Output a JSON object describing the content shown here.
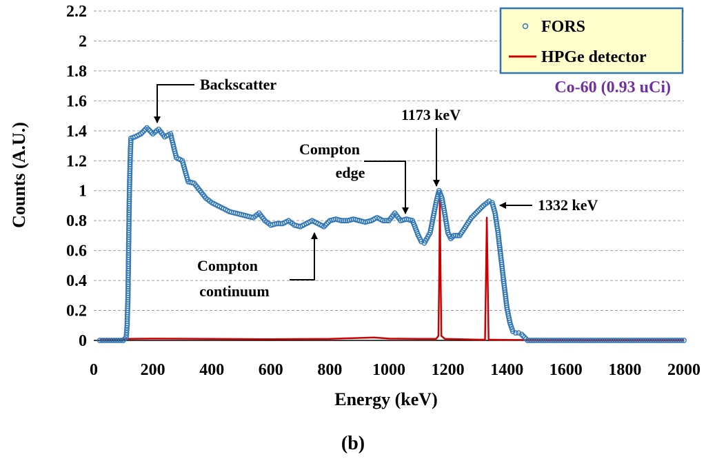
{
  "chart_data": {
    "type": "line",
    "title": "",
    "xlabel": "Energy (keV)",
    "ylabel": "Counts (A.U.)",
    "xlim": [
      0,
      2000
    ],
    "ylim": [
      0,
      2.2
    ],
    "x_ticks": [
      "0",
      "200",
      "400",
      "600",
      "800",
      "1000",
      "1200",
      "1400",
      "1600",
      "1800",
      "2000"
    ],
    "y_ticks": [
      "0",
      "0.2",
      "0.4",
      "0.6",
      "0.8",
      "1",
      "1.2",
      "1.4",
      "1.6",
      "1.8",
      "2",
      "2.2"
    ],
    "grid": "horizontal dashed",
    "legend_position": "top-right",
    "source_label": "Co-60 (0.93 uCi)",
    "panel_label": "(b)",
    "series": [
      {
        "name": "FORS",
        "style": "open circle markers",
        "color": "#2E75B6",
        "points": [
          [
            20,
            0
          ],
          [
            60,
            0
          ],
          [
            100,
            0
          ],
          [
            110,
            0.02
          ],
          [
            113,
            0.1
          ],
          [
            116,
            0.3
          ],
          [
            118,
            0.6
          ],
          [
            120,
            0.9
          ],
          [
            122,
            1.1
          ],
          [
            124,
            1.25
          ],
          [
            126,
            1.35
          ],
          [
            140,
            1.36
          ],
          [
            160,
            1.38
          ],
          [
            180,
            1.42
          ],
          [
            200,
            1.38
          ],
          [
            220,
            1.41
          ],
          [
            240,
            1.36
          ],
          [
            260,
            1.38
          ],
          [
            280,
            1.22
          ],
          [
            300,
            1.2
          ],
          [
            320,
            1.06
          ],
          [
            340,
            1.05
          ],
          [
            360,
            1.0
          ],
          [
            380,
            0.95
          ],
          [
            400,
            0.92
          ],
          [
            420,
            0.9
          ],
          [
            440,
            0.88
          ],
          [
            460,
            0.86
          ],
          [
            480,
            0.85
          ],
          [
            500,
            0.84
          ],
          [
            520,
            0.83
          ],
          [
            540,
            0.82
          ],
          [
            560,
            0.85
          ],
          [
            580,
            0.8
          ],
          [
            600,
            0.77
          ],
          [
            620,
            0.78
          ],
          [
            640,
            0.78
          ],
          [
            660,
            0.8
          ],
          [
            680,
            0.77
          ],
          [
            700,
            0.76
          ],
          [
            720,
            0.78
          ],
          [
            740,
            0.8
          ],
          [
            760,
            0.78
          ],
          [
            780,
            0.76
          ],
          [
            800,
            0.8
          ],
          [
            820,
            0.81
          ],
          [
            840,
            0.8
          ],
          [
            860,
            0.8
          ],
          [
            880,
            0.81
          ],
          [
            900,
            0.8
          ],
          [
            920,
            0.79
          ],
          [
            940,
            0.8
          ],
          [
            960,
            0.82
          ],
          [
            980,
            0.8
          ],
          [
            1000,
            0.8
          ],
          [
            1020,
            0.85
          ],
          [
            1040,
            0.8
          ],
          [
            1060,
            0.81
          ],
          [
            1080,
            0.8
          ],
          [
            1090,
            0.75
          ],
          [
            1100,
            0.7
          ],
          [
            1110,
            0.66
          ],
          [
            1120,
            0.65
          ],
          [
            1140,
            0.72
          ],
          [
            1150,
            0.82
          ],
          [
            1160,
            0.92
          ],
          [
            1170,
            1.0
          ],
          [
            1180,
            0.95
          ],
          [
            1190,
            0.84
          ],
          [
            1200,
            0.72
          ],
          [
            1210,
            0.68
          ],
          [
            1220,
            0.7
          ],
          [
            1240,
            0.7
          ],
          [
            1260,
            0.76
          ],
          [
            1280,
            0.82
          ],
          [
            1300,
            0.86
          ],
          [
            1320,
            0.9
          ],
          [
            1340,
            0.93
          ],
          [
            1350,
            0.92
          ],
          [
            1360,
            0.85
          ],
          [
            1370,
            0.72
          ],
          [
            1380,
            0.55
          ],
          [
            1390,
            0.38
          ],
          [
            1400,
            0.22
          ],
          [
            1410,
            0.12
          ],
          [
            1420,
            0.06
          ],
          [
            1430,
            0.05
          ],
          [
            1440,
            0.05
          ],
          [
            1450,
            0.04
          ],
          [
            1460,
            0.02
          ],
          [
            1470,
            0
          ],
          [
            1500,
            0
          ],
          [
            1600,
            0
          ],
          [
            1700,
            0
          ],
          [
            1800,
            0
          ],
          [
            1900,
            0
          ],
          [
            2000,
            0
          ]
        ]
      },
      {
        "name": "HPGe detector",
        "style": "line",
        "color": "#CC0000",
        "points": [
          [
            20,
            0.005
          ],
          [
            100,
            0.01
          ],
          [
            110,
            0.01
          ],
          [
            200,
            0.012
          ],
          [
            400,
            0.01
          ],
          [
            600,
            0.008
          ],
          [
            800,
            0.01
          ],
          [
            950,
            0.02
          ],
          [
            1000,
            0.012
          ],
          [
            1100,
            0.01
          ],
          [
            1160,
            0.01
          ],
          [
            1168,
            0.03
          ],
          [
            1171,
            0.5
          ],
          [
            1173,
            0.94
          ],
          [
            1175,
            0.5
          ],
          [
            1178,
            0.03
          ],
          [
            1190,
            0.01
          ],
          [
            1300,
            0.005
          ],
          [
            1326,
            0.005
          ],
          [
            1329,
            0.4
          ],
          [
            1332,
            0.82
          ],
          [
            1335,
            0.4
          ],
          [
            1338,
            0.005
          ],
          [
            1400,
            0.003
          ],
          [
            1600,
            0.002
          ],
          [
            2000,
            0.002
          ]
        ]
      }
    ],
    "annotations": [
      {
        "lines": [
          "Backscatter"
        ],
        "target": [
          215,
          1.43
        ]
      },
      {
        "lines": [
          "1173 keV"
        ],
        "target": [
          1173,
          1.02
        ]
      },
      {
        "lines": [
          "Compton",
          "edge"
        ],
        "target": [
          1070,
          0.82
        ]
      },
      {
        "lines": [
          "1332 keV"
        ],
        "target": [
          1355,
          0.92
        ]
      },
      {
        "lines": [
          "Compton",
          "continuum"
        ],
        "target": [
          740,
          0.72
        ]
      }
    ]
  }
}
